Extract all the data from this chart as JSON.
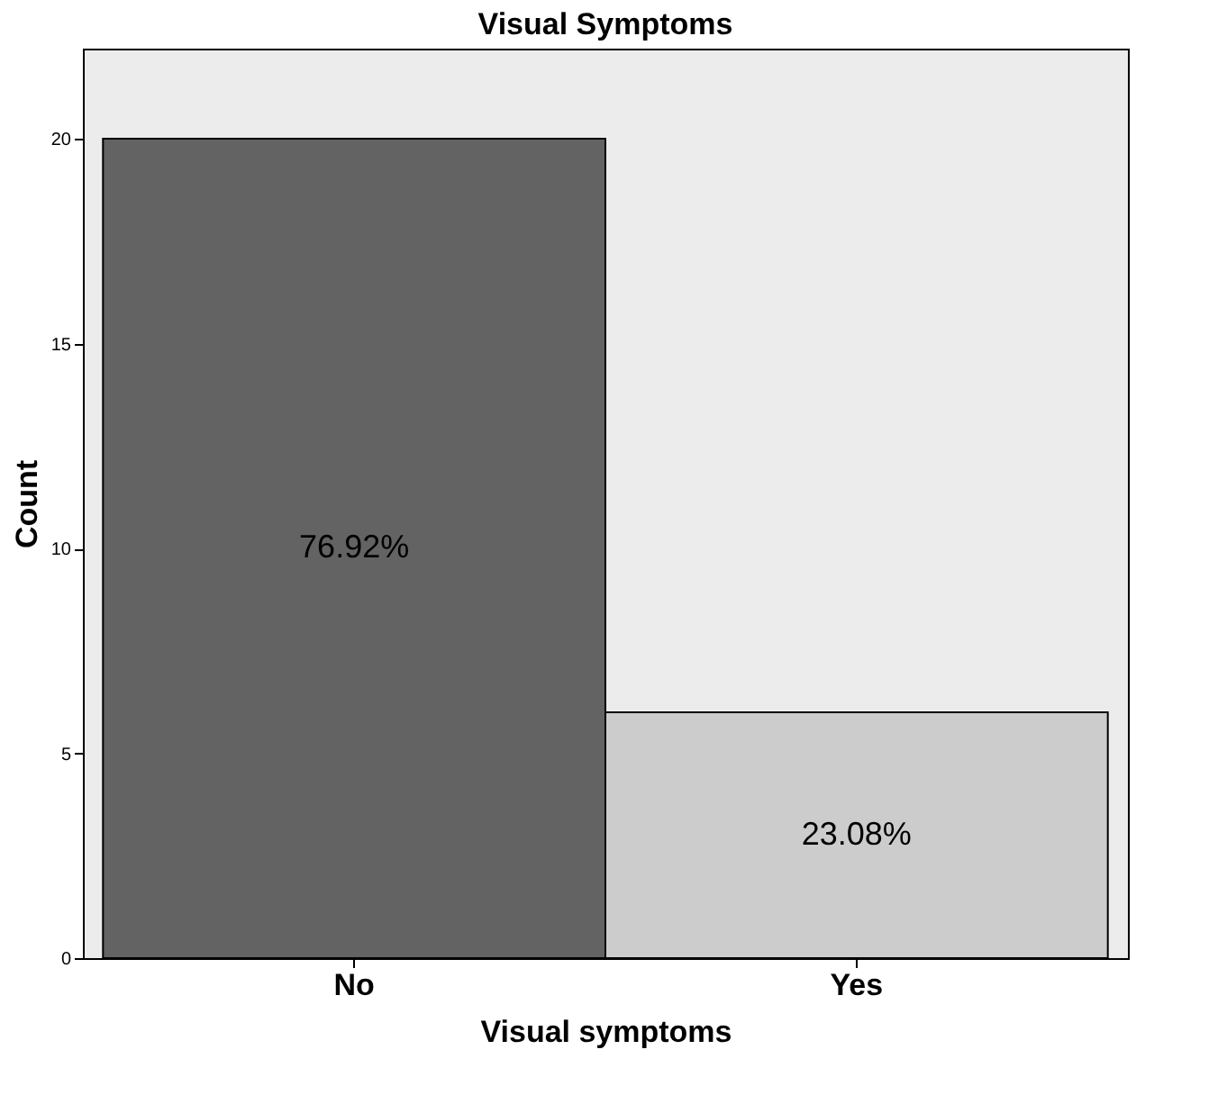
{
  "chart_data": {
    "type": "bar",
    "title": "Visual Symptoms",
    "xlabel": "Visual symptoms",
    "ylabel": "Count",
    "categories": [
      "No",
      "Yes"
    ],
    "values": [
      20,
      6
    ],
    "colors": [
      "#636363",
      "#cccccc"
    ],
    "annotations": [
      "76.92%",
      "23.08%"
    ],
    "ylim": [
      0,
      22.2
    ],
    "yticks": [
      0,
      5,
      10,
      15,
      20
    ],
    "grid": false
  }
}
